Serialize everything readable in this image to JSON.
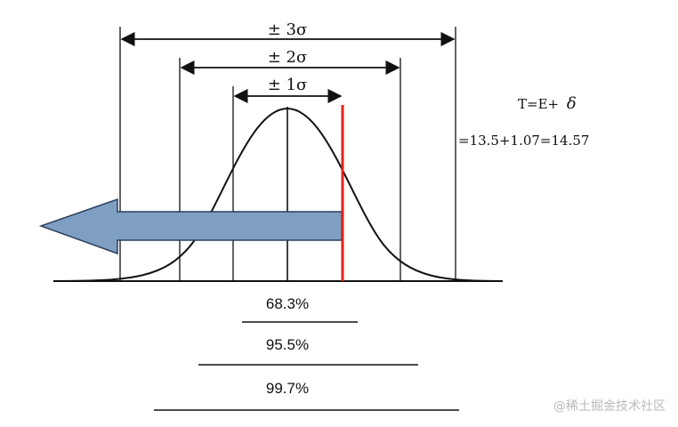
{
  "diagram": {
    "sigma_ranges": [
      {
        "label": "± 3σ"
      },
      {
        "label": "± 2σ"
      },
      {
        "label": "± 1σ"
      }
    ],
    "percentages": [
      {
        "label": "68.3%"
      },
      {
        "label": "95.5%"
      },
      {
        "label": "99.7%"
      }
    ],
    "equation": {
      "line1_prefix": "T=E+",
      "line1_symbol": "δ",
      "line2": "=13.5+1.07=14.57"
    },
    "colors": {
      "threshold_line": "#e8201a",
      "arrow_fill": "#7f9fc2",
      "arrow_stroke": "#2b3f5c",
      "ink": "#111111"
    }
  },
  "watermark": "@稀土掘金技术社区"
}
